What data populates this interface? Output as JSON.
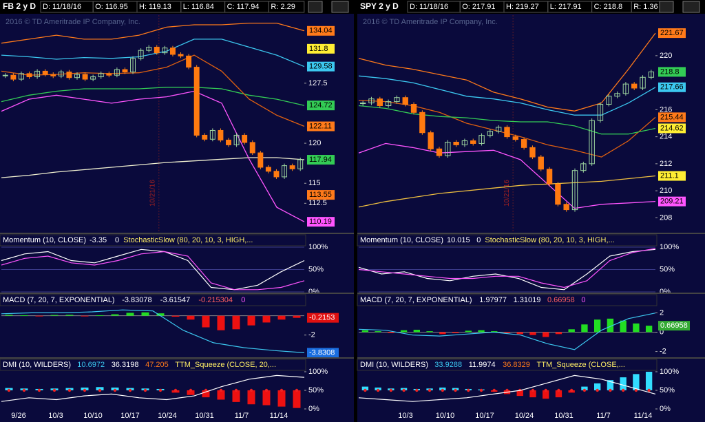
{
  "panels": [
    {
      "header": {
        "symbol": "FB 2 y D",
        "fields": [
          "D: 11/18/16",
          "O: 116.95",
          "H: 119.13",
          "L: 116.84",
          "C: 117.94",
          "R: 2.29"
        ]
      },
      "copyright": "2016 © TD Ameritrade IP Company, Inc.",
      "event_label": "10/21/16",
      "ylim": [
        109,
        136
      ],
      "yticks": [
        112.5,
        115,
        120,
        127.5
      ],
      "closes": [
        128.5,
        128.0,
        128.7,
        128.3,
        129.0,
        128.6,
        128.4,
        128.9,
        128.2,
        128.6,
        128.0,
        128.3,
        128.7,
        128.5,
        129.2,
        128.9,
        130.6,
        131.6,
        132.0,
        131.3,
        131.9,
        131.1,
        130.9,
        129.5,
        121.0,
        120.5,
        121.6,
        120.4,
        119.8,
        121.0,
        120.1,
        118.8,
        117.0,
        116.5,
        115.8,
        117.2,
        116.8,
        117.94
      ],
      "lines": [
        {
          "color": "#ff7a1a",
          "values": [
            132.5,
            133,
            133.5,
            133,
            133,
            133.5,
            134.5,
            134.8,
            134.8,
            135,
            135,
            134.04
          ]
        },
        {
          "color": "#3cc8f0",
          "values": [
            131,
            130.8,
            130.5,
            130.7,
            130.6,
            130.8,
            131.5,
            133,
            133,
            132,
            131,
            129.58
          ]
        },
        {
          "color": "#33cc55",
          "values": [
            125.2,
            126,
            126.5,
            126.8,
            126.8,
            126.8,
            127,
            127,
            126.8,
            126,
            125.5,
            124.72
          ]
        },
        {
          "color": "#e06010",
          "values": [
            129,
            128.5,
            128.6,
            128.8,
            128.7,
            128.8,
            129.5,
            131,
            129,
            125.5,
            123.5,
            122.11
          ]
        },
        {
          "color": "#f0f0d0",
          "values": [
            115.7,
            116,
            116.4,
            116.7,
            117,
            117.3,
            117.6,
            117.8,
            118,
            118.2,
            118.2,
            117.94
          ]
        },
        {
          "color": "#ff55ff",
          "values": [
            124,
            125.5,
            126,
            125.5,
            125,
            125.5,
            125.8,
            126.5,
            125,
            118,
            112,
            110.19
          ]
        }
      ],
      "badges": [
        {
          "value": 134.04,
          "color": "#ff7a1a"
        },
        {
          "value": 131.8,
          "color": "#ffee33"
        },
        {
          "value": 129.58,
          "color": "#3cc8f0"
        },
        {
          "value": 124.72,
          "color": "#33cc55"
        },
        {
          "value": 122.11,
          "color": "#ff7a1a"
        },
        {
          "value": 117.94,
          "color": "#33cc55"
        },
        {
          "value": 113.55,
          "color": "#ff7a1a"
        },
        {
          "value": 110.19,
          "color": "#ff55ff"
        }
      ],
      "momentum": {
        "title": "Momentum (10, CLOSE)",
        "values_text": [
          "-3.35",
          "0"
        ],
        "study": "StochasticSlow (80, 20, 10, 3, HIGH,...",
        "yticks": [
          {
            "value": 100,
            "label": "100%"
          },
          {
            "value": 50,
            "label": "50%"
          },
          {
            "value": 0,
            "label": "0%"
          }
        ],
        "lines": [
          {
            "color": "#ffffff",
            "values": [
              70,
              85,
              90,
              70,
              65,
              80,
              95,
              90,
              70,
              10,
              5,
              15,
              45,
              70
            ]
          },
          {
            "color": "#ff55ff",
            "values": [
              60,
              75,
              80,
              65,
              60,
              70,
              85,
              90,
              80,
              20,
              5,
              5,
              10,
              25
            ]
          }
        ]
      },
      "macd": {
        "title": "MACD (7, 20, 7, EXPONENTIAL)",
        "values_text": [
          "-3.83078",
          "-3.61547",
          "-0.215304",
          "0"
        ],
        "ylim": [
          -4.3,
          0.9
        ],
        "yticks": [
          -2
        ],
        "histogram": [
          0.1,
          0.05,
          -0.05,
          0.08,
          0.1,
          -0.05,
          0.05,
          0.15,
          0.3,
          0.35,
          0.25,
          -0.1,
          -0.4,
          -1.2,
          -1.5,
          -1.4,
          -1.0,
          -0.7,
          -0.4,
          -0.2153
        ],
        "line": [
          0.2,
          0.3,
          0.3,
          0.4,
          0.6,
          0.5,
          -1.5,
          -2.8,
          -3.3,
          -3.6,
          -3.8308
        ],
        "badges": [
          {
            "value": -0.2153,
            "color": "#e01010"
          },
          {
            "value": -3.8308,
            "color": "#1a6ee0"
          }
        ]
      },
      "dmi": {
        "title": "DMI (10, WILDERS)",
        "values_text": [
          "10.6972",
          "36.3198",
          "47.205"
        ],
        "study": "TTM_Squeeze (CLOSE, 20,...",
        "yticks": [
          {
            "value": 100,
            "label": "100%"
          },
          {
            "value": 50,
            "label": "50%"
          },
          {
            "value": 0,
            "label": "0%"
          }
        ],
        "squeeze": [
          0.5,
          0.4,
          0.3,
          0.4,
          0.5,
          0.6,
          0.7,
          0.6,
          0.5,
          0.4,
          0.3,
          -0.5,
          -1,
          -1.5,
          -2,
          -2.5,
          -3,
          -3.2,
          -3.5,
          -3.8
        ],
        "sq_ylim": [
          -4,
          4
        ],
        "line": [
          20,
          30,
          25,
          35,
          40,
          30,
          25,
          35,
          60,
          80,
          90,
          85
        ]
      },
      "x_labels": [
        "9/26",
        "10/3",
        "10/10",
        "10/17",
        "10/24",
        "10/31",
        "11/7",
        "11/14"
      ]
    },
    {
      "header": {
        "symbol": "SPY 2 y D",
        "fields": [
          "D: 11/18/16",
          "O: 217.91",
          "H: 219.27",
          "L: 217.91",
          "C: 218.8",
          "R: 1.36"
        ]
      },
      "copyright": "2016 © TD Ameritrade IP Company, Inc.",
      "event_label": "10/21/16",
      "ylim": [
        207,
        223
      ],
      "yticks": [
        208,
        210,
        212,
        214,
        216,
        220
      ],
      "closes": [
        216.5,
        216.8,
        216.3,
        216.6,
        216.9,
        216.4,
        215.8,
        214.3,
        213.1,
        212.6,
        213.6,
        213.4,
        213.7,
        213.5,
        214.1,
        214.4,
        214.7,
        214.0,
        213.8,
        213.2,
        212.5,
        211.6,
        210.5,
        209.0,
        208.6,
        211.5,
        212.0,
        215.2,
        216.4,
        217.0,
        217.2,
        217.9,
        217.6,
        218.4,
        218.8
      ],
      "lines": [
        {
          "color": "#ff7a1a",
          "values": [
            219.8,
            219.3,
            219,
            218.6,
            218.2,
            217.3,
            216.8,
            216.2,
            215.9,
            216.5,
            219,
            221.67
          ]
        },
        {
          "color": "#3cc8f0",
          "values": [
            218.5,
            218.3,
            218,
            217.5,
            217,
            216.8,
            216.5,
            216,
            215.6,
            215.6,
            216.5,
            217.66
          ]
        },
        {
          "color": "#e06010",
          "values": [
            216.7,
            216.6,
            216.3,
            215.8,
            215,
            214.5,
            214,
            213.4,
            213,
            212.5,
            213.7,
            215.44
          ]
        },
        {
          "color": "#33cc55",
          "values": [
            216.3,
            216.1,
            215.7,
            215.5,
            215.4,
            215.2,
            215.1,
            215.1,
            214.8,
            214.2,
            214.2,
            214.62
          ]
        },
        {
          "color": "#f0c040",
          "values": [
            208.8,
            209.2,
            209.5,
            209.8,
            210,
            210.2,
            210.4,
            210.5,
            210.6,
            210.7,
            210.9,
            211.1
          ]
        },
        {
          "color": "#ff55ff",
          "values": [
            212.8,
            213.5,
            213.2,
            212.8,
            212.9,
            213,
            212.3,
            210.5,
            208.7,
            209,
            209.1,
            209.21
          ]
        }
      ],
      "badges": [
        {
          "value": 221.67,
          "color": "#ff7a1a"
        },
        {
          "value": 218.8,
          "color": "#33cc55"
        },
        {
          "value": 217.66,
          "color": "#3cc8f0"
        },
        {
          "value": 215.44,
          "color": "#ff7a1a"
        },
        {
          "value": 214.62,
          "color": "#ffee33"
        },
        {
          "value": 211.1,
          "color": "#ffee33"
        },
        {
          "value": 209.21,
          "color": "#ff55ff"
        }
      ],
      "momentum": {
        "title": "Momentum (10, CLOSE)",
        "values_text": [
          "10.015",
          "0"
        ],
        "study": "StochasticSlow (80, 20, 10, 3, HIGH,...",
        "yticks": [
          {
            "value": 100,
            "label": "100%"
          },
          {
            "value": 50,
            "label": "50%"
          },
          {
            "value": 0,
            "label": "0%"
          }
        ],
        "lines": [
          {
            "color": "#ffffff",
            "values": [
              55,
              40,
              45,
              30,
              25,
              35,
              40,
              30,
              10,
              5,
              40,
              80,
              90,
              95
            ]
          },
          {
            "color": "#ff55ff",
            "values": [
              50,
              45,
              40,
              35,
              30,
              30,
              35,
              35,
              20,
              10,
              25,
              70,
              88,
              97
            ]
          }
        ]
      },
      "macd": {
        "title": "MACD (7, 20, 7, EXPONENTIAL)",
        "values_text": [
          "1.97977",
          "1.31019",
          "0.66958",
          "0"
        ],
        "ylim": [
          -2.6,
          2.6
        ],
        "yticks": [
          2,
          0,
          -2
        ],
        "histogram": [
          0.2,
          0.1,
          -0.1,
          0.2,
          0.25,
          0.1,
          -0.2,
          -0.1,
          0.15,
          0.2,
          0.1,
          -0.1,
          -0.2,
          -0.3,
          -0.5,
          -0.2,
          0.3,
          0.8,
          1.3,
          1.4,
          1.2,
          0.9,
          0.66958
        ],
        "line": [
          0.3,
          0.2,
          -0.3,
          -0.4,
          -0.2,
          0,
          -0.3,
          -1.2,
          -1.8,
          0.2,
          1.4,
          1.97977
        ],
        "badges": [
          {
            "value": 0.66958,
            "color": "#33aa33"
          }
        ]
      },
      "dmi": {
        "title": "DMI (10, WILDERS)",
        "values_text": [
          "33.9288",
          "11.9974",
          "36.8329"
        ],
        "study": "TTM_Squeeze (CLOSE,...",
        "yticks": [
          {
            "value": 100,
            "label": "100%"
          },
          {
            "value": 50,
            "label": "50%"
          },
          {
            "value": 0,
            "label": "0%"
          }
        ],
        "squeeze": [
          0.8,
          0.6,
          0.4,
          0.5,
          0.3,
          0.4,
          0.6,
          0.5,
          0.3,
          0.2,
          -0.3,
          -0.8,
          -1.2,
          -1.5,
          -1.8,
          -1.5,
          -0.5,
          0.8,
          1.5,
          2.2,
          2.8,
          3.5,
          4
        ],
        "sq_ylim": [
          -4,
          4
        ],
        "line": [
          30,
          25,
          20,
          25,
          30,
          40,
          50,
          70,
          90,
          80,
          60,
          40
        ]
      },
      "x_labels": [
        "10/3",
        "10/10",
        "10/17",
        "10/24",
        "10/31",
        "11/7",
        "11/14"
      ]
    }
  ]
}
